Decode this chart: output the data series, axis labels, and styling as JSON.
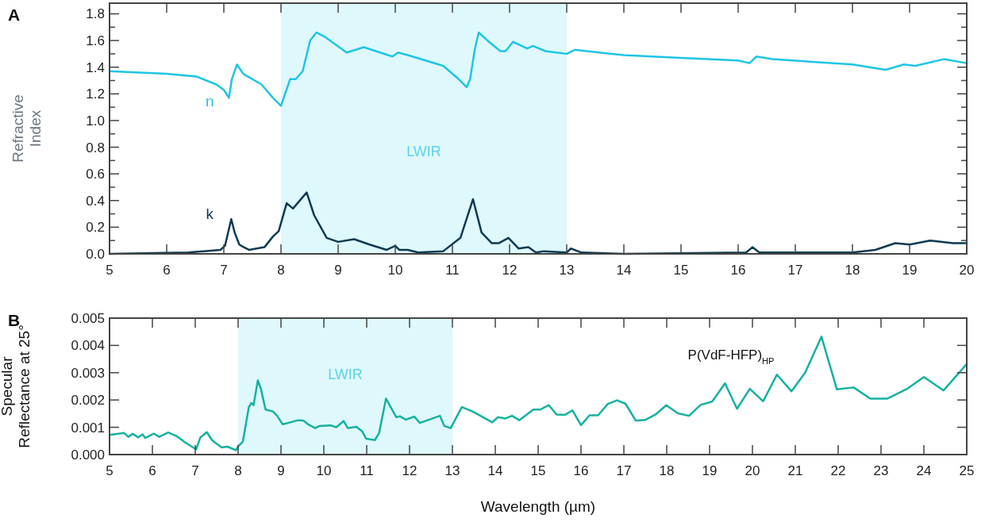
{
  "chart_data": [
    {
      "type": "line",
      "title": "A",
      "ylabel": "Refractive\nIndex",
      "xlim": [
        5,
        20
      ],
      "ylim": [
        0,
        1.88
      ],
      "xticks": [
        5,
        6,
        7,
        8,
        9,
        10,
        11,
        12,
        13,
        14,
        15,
        16,
        17,
        18,
        19,
        20
      ],
      "yticks": [
        {
          "value": 0,
          "label": "0.0"
        },
        {
          "value": 0.1,
          "label": null
        },
        {
          "value": 0.2,
          "label": "0.2"
        },
        {
          "value": 0.3,
          "label": null
        },
        {
          "value": 0.4,
          "label": "0.4"
        },
        {
          "value": 0.5,
          "label": null
        },
        {
          "value": 0.6,
          "label": "0.6"
        },
        {
          "value": 0.7,
          "label": null
        },
        {
          "value": 0.8,
          "label": "0.8"
        },
        {
          "value": 0.9,
          "label": null
        },
        {
          "value": 1.0,
          "label": "1.0"
        },
        {
          "value": 1.1,
          "label": null
        },
        {
          "value": 1.2,
          "label": "1.2"
        },
        {
          "value": 1.3,
          "label": null
        },
        {
          "value": 1.4,
          "label": "1.4"
        },
        {
          "value": 1.5,
          "label": null
        },
        {
          "value": 1.6,
          "label": "1.6"
        },
        {
          "value": 1.7,
          "label": null
        },
        {
          "value": 1.8,
          "label": "1.8"
        }
      ],
      "bands": [
        {
          "axis": "x",
          "from": 8,
          "to": 13,
          "label": "LWIR",
          "color": "#dff8fc"
        }
      ],
      "series": [
        {
          "name": "n",
          "color": "#1ec5e6",
          "x": [
            5,
            6,
            6.52,
            6.87,
            7.0,
            7.09,
            7.14,
            7.23,
            7.34,
            7.66,
            7.86,
            8.0,
            8.16,
            8.26,
            8.38,
            8.51,
            8.62,
            8.76,
            9.15,
            9.45,
            9.95,
            10.05,
            10.22,
            10.84,
            11.11,
            11.25,
            11.31,
            11.39,
            11.46,
            11.64,
            11.84,
            11.93,
            12.06,
            12.31,
            12.41,
            12.63,
            13.0,
            13.14,
            14.0,
            15.0,
            16.0,
            16.2,
            16.32,
            16.6,
            18.0,
            18.58,
            18.9,
            19.1,
            19.6,
            20.0
          ],
          "values": [
            1.37,
            1.35,
            1.33,
            1.27,
            1.23,
            1.17,
            1.31,
            1.42,
            1.35,
            1.27,
            1.17,
            1.11,
            1.31,
            1.31,
            1.37,
            1.6,
            1.66,
            1.63,
            1.51,
            1.55,
            1.48,
            1.51,
            1.49,
            1.41,
            1.31,
            1.25,
            1.31,
            1.53,
            1.66,
            1.59,
            1.52,
            1.52,
            1.59,
            1.54,
            1.56,
            1.52,
            1.5,
            1.53,
            1.49,
            1.47,
            1.45,
            1.43,
            1.48,
            1.46,
            1.42,
            1.38,
            1.42,
            1.41,
            1.46,
            1.43
          ]
        },
        {
          "name": "k",
          "color": "#0d3a52",
          "x": [
            5,
            6.37,
            6.94,
            7.02,
            7.13,
            7.19,
            7.27,
            7.35,
            7.44,
            7.71,
            7.86,
            7.96,
            8.1,
            8.21,
            8.45,
            8.58,
            8.8,
            9.0,
            9.28,
            9.55,
            9.85,
            10.0,
            10.07,
            10.22,
            10.4,
            10.84,
            11.14,
            11.36,
            11.51,
            11.69,
            11.81,
            11.98,
            12.16,
            12.33,
            12.46,
            12.6,
            13.0,
            13.07,
            13.26,
            14.0,
            16.14,
            16.25,
            16.37,
            18.0,
            18.4,
            18.75,
            19.0,
            19.36,
            19.76,
            20.0
          ],
          "values": [
            0.0,
            0.01,
            0.03,
            0.06,
            0.26,
            0.16,
            0.07,
            0.05,
            0.03,
            0.05,
            0.13,
            0.17,
            0.38,
            0.34,
            0.46,
            0.29,
            0.12,
            0.09,
            0.11,
            0.07,
            0.03,
            0.06,
            0.03,
            0.03,
            0.01,
            0.02,
            0.12,
            0.41,
            0.16,
            0.08,
            0.08,
            0.12,
            0.04,
            0.05,
            0.01,
            0.02,
            0.01,
            0.04,
            0.01,
            0.0,
            0.01,
            0.05,
            0.01,
            0.01,
            0.03,
            0.08,
            0.07,
            0.1,
            0.08,
            0.08
          ]
        }
      ]
    },
    {
      "type": "line",
      "title": "B",
      "xlabel": "Wavelength (µm)",
      "ylabel": "Specular\nReflectance at 25°",
      "xlim": [
        5,
        25
      ],
      "ylim": [
        0,
        0.005
      ],
      "xticks": [
        5,
        6,
        7,
        8,
        9,
        10,
        11,
        12,
        13,
        14,
        15,
        16,
        17,
        18,
        19,
        20,
        21,
        22,
        23,
        24,
        25
      ],
      "yticks": [
        {
          "value": 0,
          "label": "0.000"
        },
        {
          "value": 0.001,
          "label": "0.001"
        },
        {
          "value": 0.002,
          "label": "0.002"
        },
        {
          "value": 0.003,
          "label": "0.003"
        },
        {
          "value": 0.004,
          "label": "0.004"
        },
        {
          "value": 0.005,
          "label": "0.005"
        }
      ],
      "bands": [
        {
          "axis": "x",
          "from": 8,
          "to": 13,
          "label": "LWIR",
          "color": "#dff8fc"
        }
      ],
      "series": [
        {
          "name": "P(VdF-HFP)$_{HP}$",
          "color": "#14b1a1",
          "x": [
            5,
            5.34,
            5.44,
            5.54,
            5.67,
            5.77,
            5.83,
            6.03,
            6.16,
            6.37,
            6.56,
            6.76,
            7.02,
            7.12,
            7.27,
            7.39,
            7.52,
            7.62,
            7.75,
            7.95,
            8.01,
            8.11,
            8.25,
            8.31,
            8.36,
            8.46,
            8.53,
            8.64,
            8.81,
            8.91,
            9.04,
            9.17,
            9.4,
            9.53,
            9.63,
            9.8,
            9.9,
            10.16,
            10.29,
            10.46,
            10.56,
            10.76,
            10.89,
            10.99,
            11.19,
            11.29,
            11.45,
            11.69,
            11.78,
            11.91,
            12.11,
            12.24,
            12.71,
            12.81,
            12.96,
            13.22,
            13.47,
            13.93,
            14.06,
            14.23,
            14.39,
            14.56,
            14.89,
            15.05,
            15.25,
            15.43,
            15.62,
            15.8,
            16.0,
            16.2,
            16.4,
            16.62,
            16.84,
            17.04,
            17.28,
            17.5,
            17.74,
            17.99,
            18.26,
            18.52,
            18.79,
            19.06,
            19.36,
            19.64,
            19.94,
            20.25,
            20.57,
            20.91,
            21.23,
            21.61,
            21.97,
            22.36,
            22.75,
            23.15,
            23.6,
            24.0,
            24.46,
            25.0
          ],
          "values": [
            0.00072,
            0.00079,
            0.00065,
            0.00076,
            0.00063,
            0.00074,
            0.00061,
            0.00077,
            0.00065,
            0.00081,
            0.00068,
            0.00045,
            0.00019,
            0.00063,
            0.00082,
            0.00053,
            0.00037,
            0.00026,
            0.00029,
            0.00016,
            0.00032,
            0.00047,
            0.00174,
            0.00189,
            0.00181,
            0.00272,
            0.00242,
            0.00165,
            0.00158,
            0.00142,
            0.00111,
            0.00116,
            0.00126,
            0.00124,
            0.00111,
            0.00097,
            0.00105,
            0.00107,
            0.001,
            0.00123,
            0.00097,
            0.00102,
            0.00086,
            0.00058,
            0.00053,
            0.00079,
            0.00205,
            0.00137,
            0.0014,
            0.00128,
            0.00139,
            0.00116,
            0.00142,
            0.00105,
            0.00097,
            0.00174,
            0.00158,
            0.00118,
            0.00137,
            0.00132,
            0.00142,
            0.00126,
            0.00165,
            0.00165,
            0.00181,
            0.00147,
            0.00145,
            0.00162,
            0.00108,
            0.00144,
            0.00144,
            0.00185,
            0.00199,
            0.00186,
            0.00124,
            0.00127,
            0.00147,
            0.00181,
            0.00151,
            0.00142,
            0.00182,
            0.00194,
            0.00261,
            0.00168,
            0.00241,
            0.00195,
            0.00293,
            0.00232,
            0.003,
            0.00432,
            0.00239,
            0.00246,
            0.00205,
            0.00205,
            0.0024,
            0.00284,
            0.00235,
            0.00332
          ]
        }
      ]
    }
  ]
}
